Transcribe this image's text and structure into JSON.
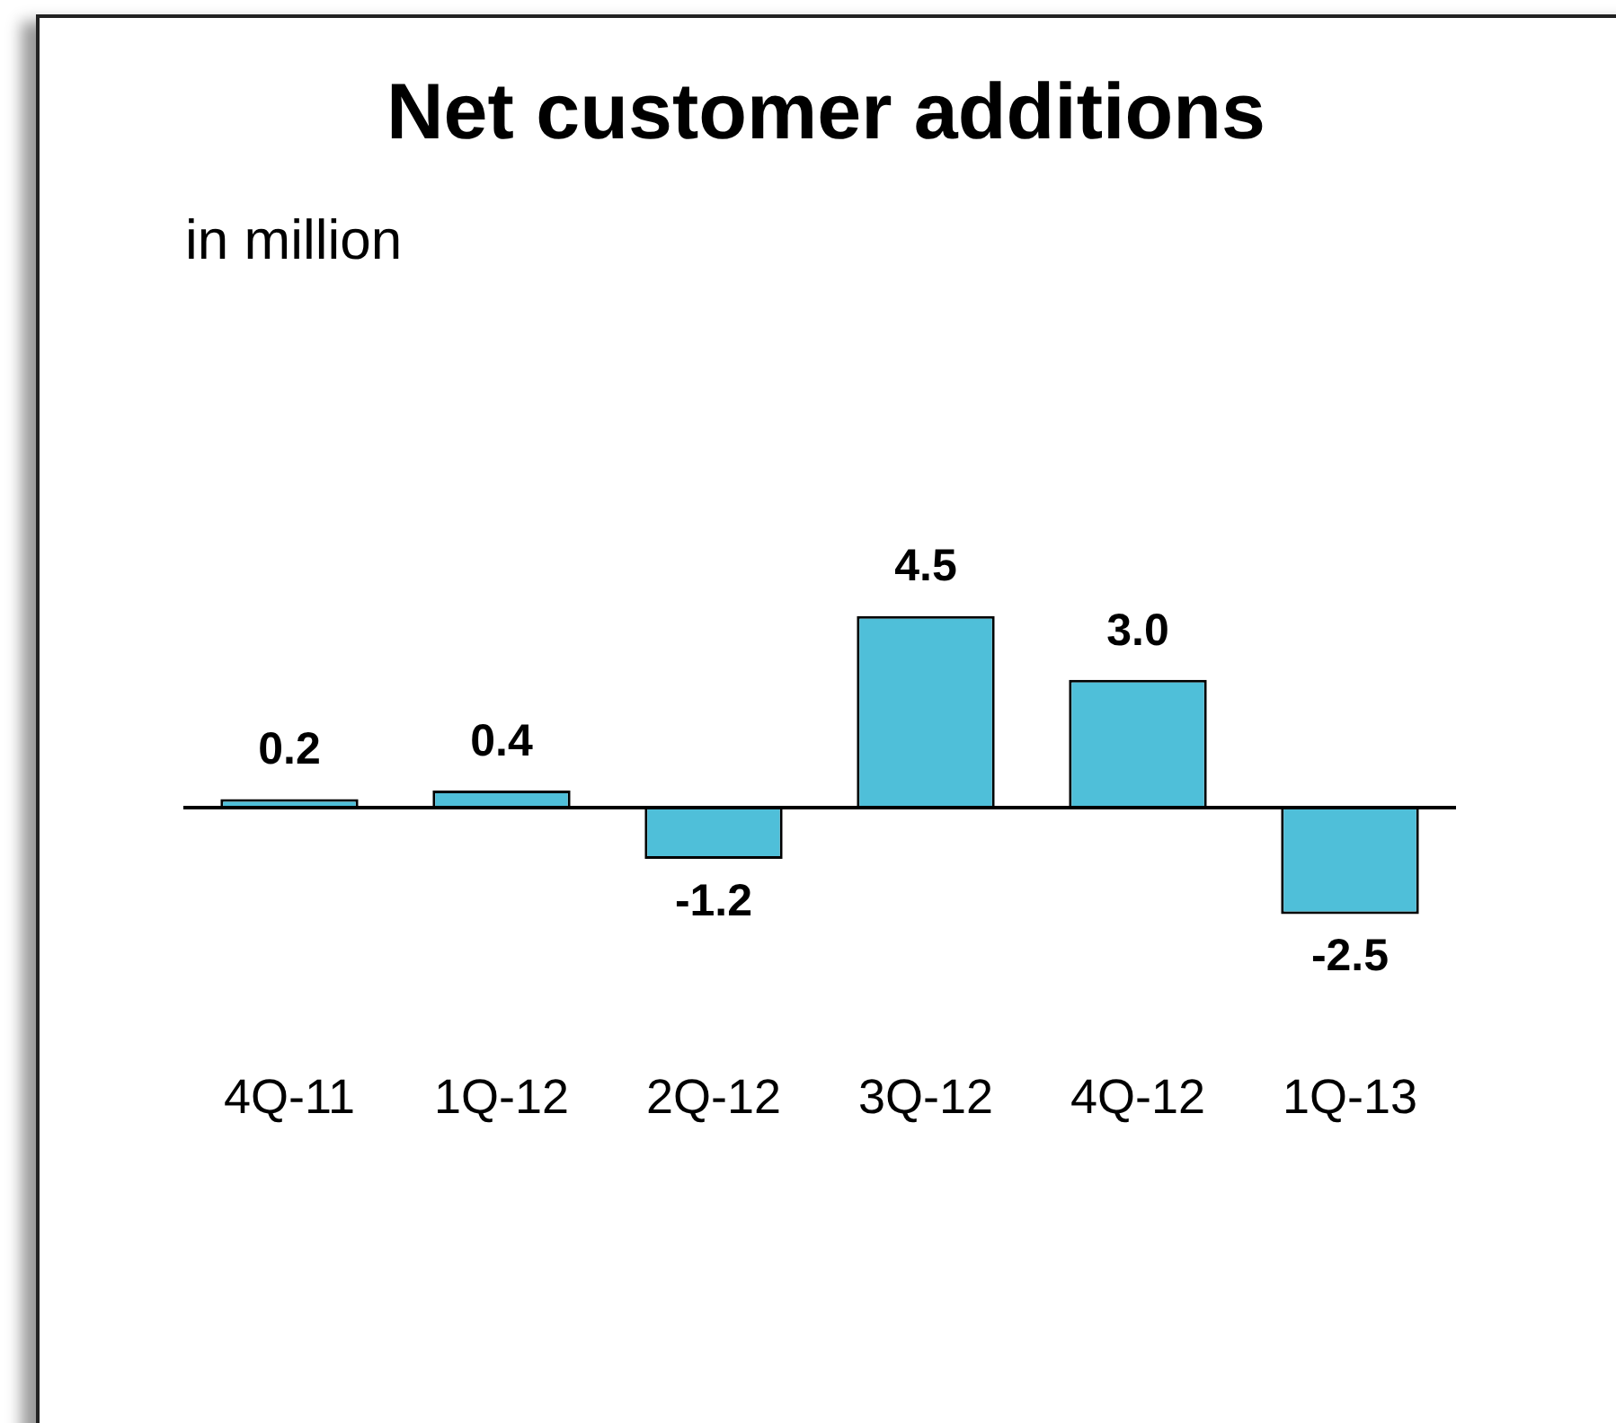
{
  "chart_data": {
    "type": "bar",
    "title": "Net customer additions",
    "subtitle": "in million",
    "categories": [
      "4Q-11",
      "1Q-12",
      "2Q-12",
      "3Q-12",
      "4Q-12",
      "1Q-13"
    ],
    "values": [
      0.2,
      0.4,
      -1.2,
      4.5,
      3.0,
      -2.5
    ],
    "value_labels": [
      "0.2",
      "0.4",
      "-1.2",
      "4.5",
      "3.0",
      "-2.5"
    ],
    "color": "#4fbfd9",
    "grid": false,
    "legend": false
  }
}
